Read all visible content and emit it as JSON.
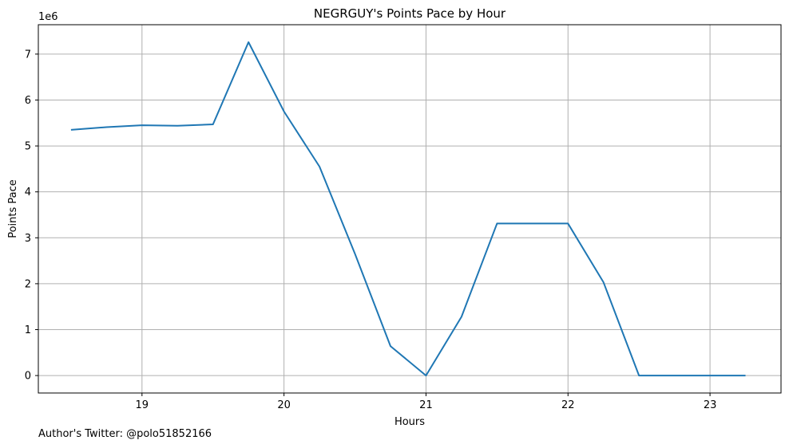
{
  "chart_data": {
    "type": "line",
    "title": "NEGRGUY's Points Pace by Hour",
    "xlabel": "Hours",
    "ylabel": "Points Pace",
    "y_offset_label": "1e6",
    "y_scale_factor": 1000000,
    "xlim": [
      18.27,
      23.5
    ],
    "ylim": [
      -380000,
      7640000
    ],
    "x_ticks": [
      19,
      20,
      21,
      22,
      23
    ],
    "y_ticks": [
      0,
      1,
      2,
      3,
      4,
      5,
      6,
      7
    ],
    "grid": true,
    "line_color": "#1f77b4",
    "series": [
      {
        "x": [
          18.5,
          18.75,
          19.0,
          19.25,
          19.5,
          19.75,
          20.0,
          20.25,
          20.5,
          20.75,
          21.0,
          21.25,
          21.5,
          21.75,
          22.0,
          22.25,
          22.5,
          22.75,
          23.0,
          23.25
        ],
        "values": [
          5350000,
          5410000,
          5450000,
          5440000,
          5470000,
          7260000,
          5750000,
          4550000,
          2650000,
          640000,
          0,
          1280000,
          3310000,
          3310000,
          3310000,
          2030000,
          0,
          0,
          0,
          0
        ]
      }
    ]
  },
  "footer": {
    "author_note": "Author's Twitter: @polo51852166"
  }
}
